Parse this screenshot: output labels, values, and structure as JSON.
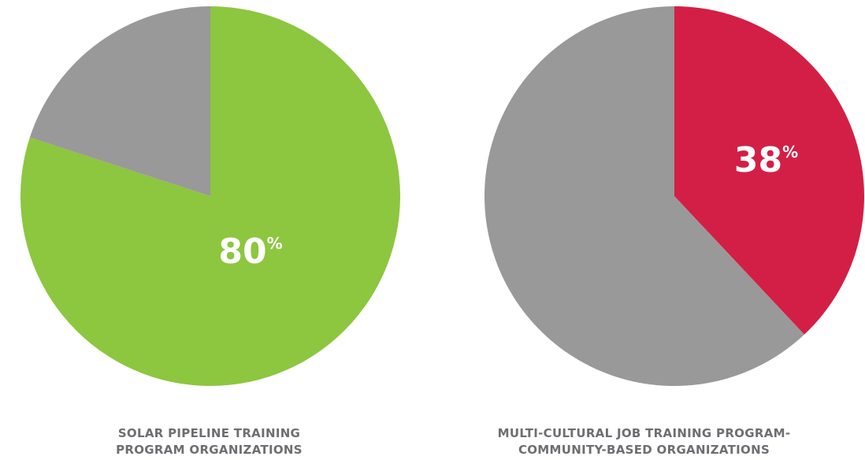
{
  "chart_data": [
    {
      "type": "pie",
      "slices": [
        {
          "value": 80,
          "color": "#8dc63f",
          "highlight": true
        },
        {
          "value": 20,
          "color": "#999999",
          "highlight": false
        }
      ],
      "value_label": {
        "number": "80",
        "symbol": "%"
      },
      "caption": [
        "SOLAR PIPELINE TRAINING",
        "PROGRAM ORGANIZATIONS"
      ]
    },
    {
      "type": "pie",
      "slices": [
        {
          "value": 38,
          "color": "#d31f45",
          "highlight": true
        },
        {
          "value": 62,
          "color": "#999999",
          "highlight": false
        }
      ],
      "value_label": {
        "number": "38",
        "symbol": "%"
      },
      "caption": [
        "MULTI-CULTURAL JOB TRAINING PROGRAM-",
        "COMMUNITY-BASED ORGANIZATIONS"
      ]
    }
  ]
}
